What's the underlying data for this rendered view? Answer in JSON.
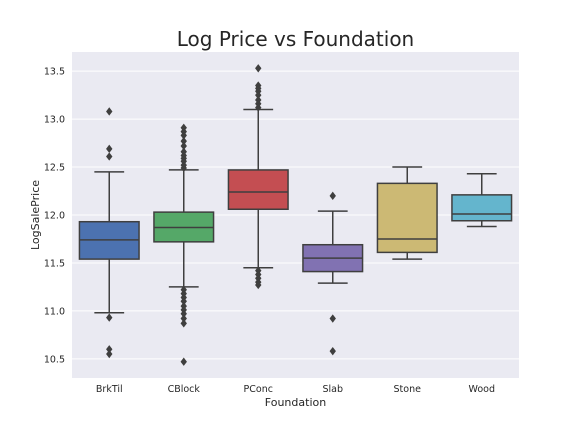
{
  "chart_data": {
    "type": "box",
    "title": "Log Price vs Foundation",
    "xlabel": "Foundation",
    "ylabel": "LogSalePrice",
    "ylim": [
      10.3,
      13.7
    ],
    "yticks": [
      10.5,
      11.0,
      11.5,
      12.0,
      12.5,
      13.0,
      13.5
    ],
    "ytick_labels": [
      "10.5",
      "11.0",
      "11.5",
      "12.0",
      "12.5",
      "13.0",
      "13.5"
    ],
    "grid": true,
    "categories": [
      "BrkTil",
      "CBlock",
      "PConc",
      "Slab",
      "Stone",
      "Wood"
    ],
    "boxes": [
      {
        "category": "BrkTil",
        "color": "#4c72b0",
        "whisker_low": 10.98,
        "q1": 11.54,
        "median": 11.74,
        "q3": 11.93,
        "whisker_high": 12.45,
        "outliers": [
          13.08,
          12.69,
          12.61,
          10.93,
          10.6,
          10.55
        ]
      },
      {
        "category": "CBlock",
        "color": "#55a868",
        "whisker_low": 11.25,
        "q1": 11.72,
        "median": 11.87,
        "q3": 12.03,
        "whisker_high": 12.47,
        "outliers": [
          12.91,
          12.87,
          12.83,
          12.77,
          12.72,
          12.66,
          12.62,
          12.59,
          12.56,
          12.52,
          12.49,
          11.22,
          11.18,
          11.14,
          11.1,
          11.05,
          11.01,
          10.97,
          10.92,
          10.87,
          10.47
        ]
      },
      {
        "category": "PConc",
        "color": "#c44e52",
        "whisker_low": 11.45,
        "q1": 12.06,
        "median": 12.24,
        "q3": 12.47,
        "whisker_high": 13.1,
        "outliers": [
          13.53,
          13.35,
          13.32,
          13.29,
          13.25,
          13.2,
          13.16,
          13.12,
          11.42,
          11.38,
          11.34,
          11.3,
          11.27
        ]
      },
      {
        "category": "Slab",
        "color": "#8172b2",
        "whisker_low": 11.29,
        "q1": 11.41,
        "median": 11.55,
        "q3": 11.69,
        "whisker_high": 12.04,
        "outliers": [
          12.2,
          10.92,
          10.58
        ]
      },
      {
        "category": "Stone",
        "color": "#ccb974",
        "whisker_low": 11.54,
        "q1": 11.61,
        "median": 11.75,
        "q3": 12.33,
        "whisker_high": 12.5,
        "outliers": []
      },
      {
        "category": "Wood",
        "color": "#64b5cd",
        "whisker_low": 11.88,
        "q1": 11.94,
        "median": 12.01,
        "q3": 12.21,
        "whisker_high": 12.43,
        "outliers": []
      }
    ]
  }
}
